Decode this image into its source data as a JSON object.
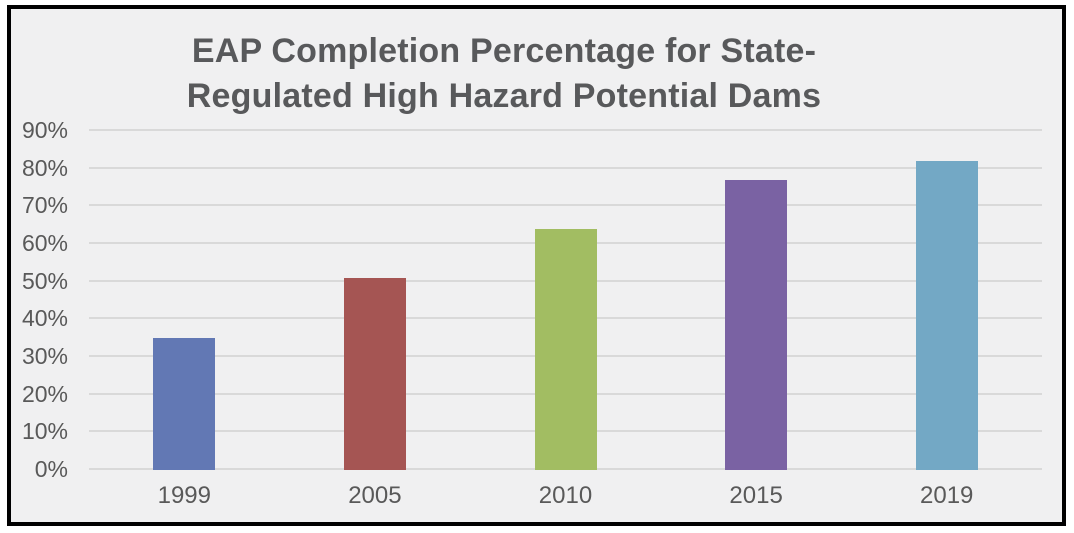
{
  "chart_data": {
    "type": "bar",
    "title": "EAP Completion Percentage for State-Regulated High Hazard Potential Dams",
    "title_lines": [
      "EAP Completion Percentage for State-",
      "Regulated High Hazard Potential Dams"
    ],
    "categories": [
      "1999",
      "2005",
      "2010",
      "2015",
      "2019"
    ],
    "values": [
      35,
      51,
      64,
      77,
      82
    ],
    "unit": "%",
    "xlabel": "",
    "ylabel": "",
    "ylim": [
      0,
      90
    ],
    "ytick_values": [
      0,
      10,
      20,
      30,
      40,
      50,
      60,
      70,
      80,
      90
    ],
    "ytick_labels": [
      "0%",
      "10%",
      "20%",
      "30%",
      "40%",
      "50%",
      "60%",
      "70%",
      "80%",
      "90%"
    ],
    "bar_colors": [
      "#6278b4",
      "#a55553",
      "#a2bd62",
      "#7a62a3",
      "#73a8c5"
    ],
    "grid": "horizontal",
    "legend": "none"
  },
  "style": {
    "frame_border_color": "#000000",
    "plot_background": "#f0f0f1",
    "outer_background": "#ffffff",
    "title_color": "#58595b",
    "axis_label_color": "#595959",
    "gridline_color": "#d9d9d9"
  }
}
